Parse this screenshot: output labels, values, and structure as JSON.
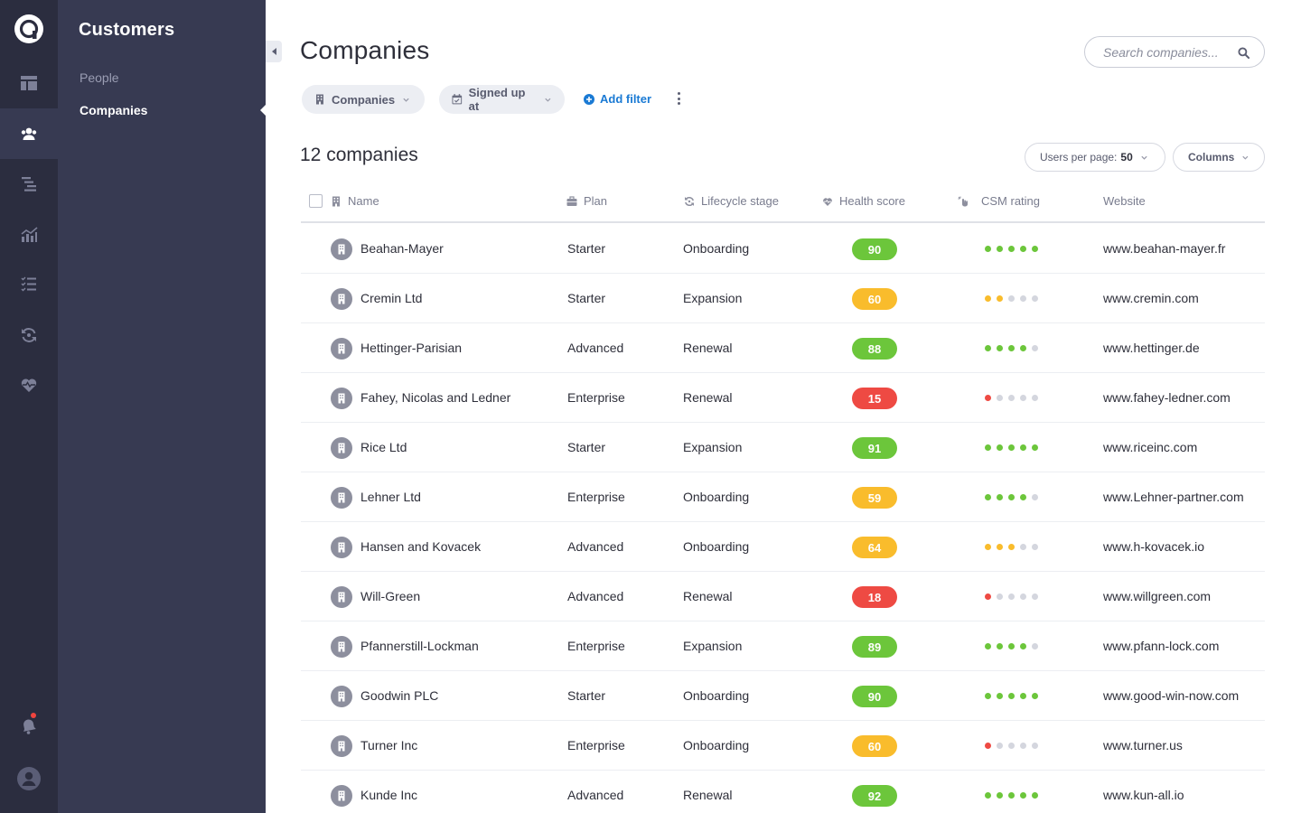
{
  "colors": {
    "green": "#6cc63b",
    "yellow": "#f9bc2c",
    "red": "#ee4a43",
    "grey_dot": "#d4d6de",
    "link": "#1a7ad4"
  },
  "rail": {
    "items": [
      {
        "name": "dashboard-icon",
        "active": false
      },
      {
        "name": "customers-icon",
        "active": true
      },
      {
        "name": "segments-icon",
        "active": false
      },
      {
        "name": "reports-icon",
        "active": false
      },
      {
        "name": "tasks-icon",
        "active": false
      },
      {
        "name": "lifecycle-icon",
        "active": false
      },
      {
        "name": "health-icon",
        "active": false
      }
    ],
    "bottom": [
      "notifications-icon",
      "user-avatar-icon"
    ]
  },
  "sidebar": {
    "title": "Customers",
    "items": [
      {
        "label": "People",
        "active": false
      },
      {
        "label": "Companies",
        "active": true
      }
    ]
  },
  "header": {
    "title": "Companies",
    "search_placeholder": "Search companies..."
  },
  "filters": {
    "companies_label": "Companies",
    "signed_up_label": "Signed up at",
    "add_filter_label": "Add filter"
  },
  "summary": {
    "count_label": "12 companies",
    "per_page_label": "Users per page:",
    "per_page_value": "50",
    "columns_label": "Columns"
  },
  "table": {
    "headers": {
      "name": "Name",
      "plan": "Plan",
      "lifecycle": "Lifecycle stage",
      "health": "Health score",
      "csm": "CSM rating",
      "website": "Website"
    },
    "rows": [
      {
        "name": "Beahan-Mayer",
        "plan": "Starter",
        "stage": "Onboarding",
        "health": 90,
        "health_color": "green",
        "rating": 5,
        "rating_color": "green",
        "website": "www.beahan-mayer.fr"
      },
      {
        "name": "Cremin Ltd",
        "plan": "Starter",
        "stage": "Expansion",
        "health": 60,
        "health_color": "yellow",
        "rating": 2,
        "rating_color": "yellow",
        "website": "www.cremin.com"
      },
      {
        "name": "Hettinger-Parisian",
        "plan": "Advanced",
        "stage": "Renewal",
        "health": 88,
        "health_color": "green",
        "rating": 4,
        "rating_color": "green",
        "website": "www.hettinger.de"
      },
      {
        "name": "Fahey, Nicolas and Ledner",
        "plan": "Enterprise",
        "stage": "Renewal",
        "health": 15,
        "health_color": "red",
        "rating": 1,
        "rating_color": "red",
        "website": "www.fahey-ledner.com"
      },
      {
        "name": "Rice Ltd",
        "plan": "Starter",
        "stage": "Expansion",
        "health": 91,
        "health_color": "green",
        "rating": 5,
        "rating_color": "green",
        "website": "www.riceinc.com"
      },
      {
        "name": "Lehner Ltd",
        "plan": "Enterprise",
        "stage": "Onboarding",
        "health": 59,
        "health_color": "yellow",
        "rating": 4,
        "rating_color": "green",
        "website": "www.Lehner-partner.com"
      },
      {
        "name": "Hansen and Kovacek",
        "plan": "Advanced",
        "stage": "Onboarding",
        "health": 64,
        "health_color": "yellow",
        "rating": 3,
        "rating_color": "yellow",
        "website": "www.h-kovacek.io"
      },
      {
        "name": "Will-Green",
        "plan": "Advanced",
        "stage": "Renewal",
        "health": 18,
        "health_color": "red",
        "rating": 1,
        "rating_color": "red",
        "website": "www.willgreen.com"
      },
      {
        "name": "Pfannerstill-Lockman",
        "plan": "Enterprise",
        "stage": "Expansion",
        "health": 89,
        "health_color": "green",
        "rating": 4,
        "rating_color": "green",
        "website": "www.pfann-lock.com"
      },
      {
        "name": "Goodwin PLC",
        "plan": "Starter",
        "stage": "Onboarding",
        "health": 90,
        "health_color": "green",
        "rating": 5,
        "rating_color": "green",
        "website": "www.good-win-now.com"
      },
      {
        "name": "Turner Inc",
        "plan": "Enterprise",
        "stage": "Onboarding",
        "health": 60,
        "health_color": "yellow",
        "rating": 1,
        "rating_color": "red",
        "website": "www.turner.us"
      },
      {
        "name": "Kunde Inc",
        "plan": "Advanced",
        "stage": "Renewal",
        "health": 92,
        "health_color": "green",
        "rating": 5,
        "rating_color": "green",
        "website": "www.kun-all.io"
      }
    ]
  }
}
